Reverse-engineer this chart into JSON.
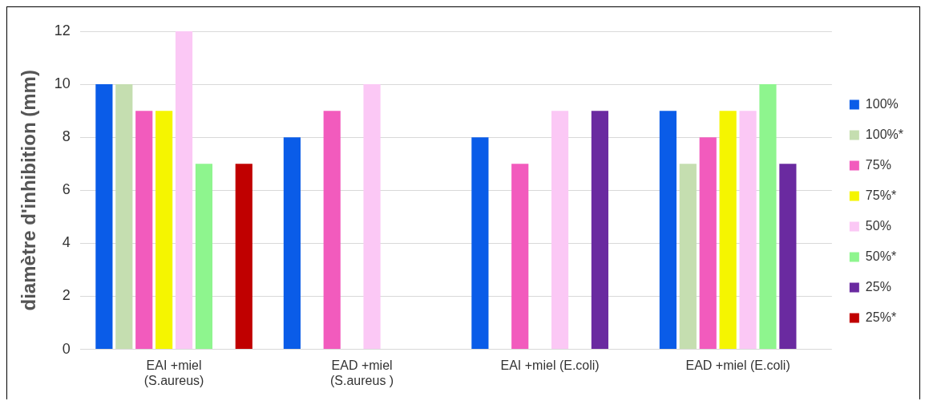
{
  "chart_data": {
    "type": "bar",
    "ylabel": "diamètre d'inhibition (mm)",
    "categories": [
      "EAI +miel (S.aureus)",
      "EAD +miel (S.aureus )",
      "EAI +miel (E.coli)",
      "EAD +miel (E.coli)"
    ],
    "series": [
      {
        "name": "100%",
        "color": "#0a5ce8",
        "values": [
          10,
          8,
          8,
          9
        ]
      },
      {
        "name": "100%*",
        "color": "#c5deb0",
        "values": [
          10,
          0,
          0,
          7
        ]
      },
      {
        "name": "75%",
        "color": "#f25bbd",
        "values": [
          9,
          9,
          7,
          8
        ]
      },
      {
        "name": "75%*",
        "color": "#f5f500",
        "values": [
          9,
          0,
          0,
          9
        ]
      },
      {
        "name": "50%",
        "color": "#fbc8f5",
        "values": [
          12,
          10,
          9,
          9
        ]
      },
      {
        "name": "50%*",
        "color": "#8ef58e",
        "values": [
          7,
          0,
          0,
          10
        ]
      },
      {
        "name": "25%",
        "color": "#6a2aa0",
        "values": [
          0,
          0,
          9,
          7
        ]
      },
      {
        "name": "25%*",
        "color": "#c00000",
        "values": [
          7,
          0,
          0,
          0
        ]
      }
    ],
    "ylim": [
      0,
      12
    ],
    "yticks": [
      0,
      2,
      4,
      6,
      8,
      10,
      12
    ],
    "grid": "y",
    "legend": "right"
  }
}
